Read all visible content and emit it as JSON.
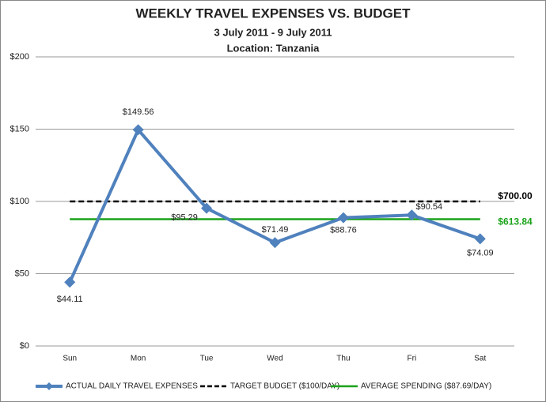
{
  "chart_data": {
    "type": "line",
    "title": "WEEKLY TRAVEL EXPENSES VS. BUDGET",
    "subtitle": "3 July 2011 - 9 July 2011",
    "subtitle2": "Location: Tanzania",
    "categories": [
      "Sun",
      "Mon",
      "Tue",
      "Wed",
      "Thu",
      "Fri",
      "Sat"
    ],
    "series": [
      {
        "name": "ACTUAL DAILY TRAVEL EXPENSES",
        "color": "#4f81bd",
        "marker": "diamond",
        "dash": false,
        "values": [
          44.11,
          149.56,
          95.29,
          71.49,
          88.76,
          90.54,
          74.09
        ],
        "value_labels": [
          "$44.11",
          "$149.56",
          "$95.29",
          "$71.49",
          "$88.76",
          "$90.54",
          "$74.09"
        ]
      },
      {
        "name": "TARGET BUDGET ($100/DAY)",
        "color": "#000000",
        "marker": null,
        "dash": true,
        "values": [
          100,
          100,
          100,
          100,
          100,
          100,
          100
        ]
      },
      {
        "name": "AVERAGE SPENDING ($87.69/DAY)",
        "color": "#1aa31a",
        "marker": null,
        "dash": false,
        "values": [
          87.69,
          87.69,
          87.69,
          87.69,
          87.69,
          87.69,
          87.69
        ]
      }
    ],
    "annotations": [
      {
        "text": "$700.00",
        "color": "#000000"
      },
      {
        "text": "$613.84",
        "color": "#1aa31a"
      }
    ],
    "ylim": [
      0,
      200
    ],
    "yticks": [
      {
        "value": 0,
        "label": "$0"
      },
      {
        "value": 50,
        "label": "$50"
      },
      {
        "value": 100,
        "label": "$100"
      },
      {
        "value": 150,
        "label": "$150"
      },
      {
        "value": 200,
        "label": "$200"
      }
    ],
    "grid": true
  }
}
